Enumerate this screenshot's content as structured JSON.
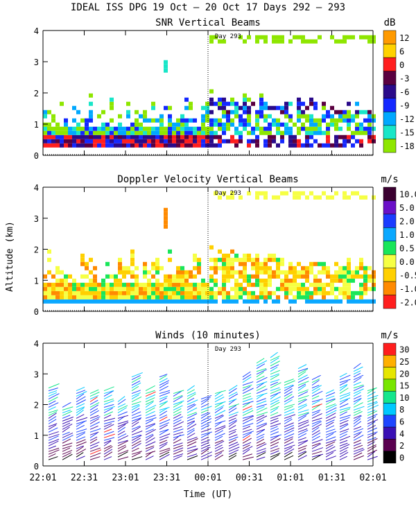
{
  "title": "IDEAL ISS DPG  19 Oct – 20 Oct 17 Days 292 – 293",
  "xlabel": "Time (UT)",
  "ylabel": "Altitude (km)",
  "day_marker": "Day 293",
  "x_ticks": [
    "22:01",
    "22:31",
    "23:01",
    "23:31",
    "00:01",
    "00:31",
    "01:01",
    "01:31",
    "02:01"
  ],
  "chart_data": [
    {
      "type": "heatmap",
      "title": "SNR Vertical Beams",
      "unit": "dB",
      "ylim": [
        0,
        4
      ],
      "y_ticks": [
        "0",
        "1",
        "2",
        "3",
        "4"
      ],
      "scale_labels": [
        "12",
        "6",
        "0",
        "-3",
        "-6",
        "-9",
        "-12",
        "-15",
        "-18"
      ],
      "scale_colors": [
        "#ff9a00",
        "#ffd200",
        "#ff1e1e",
        "#5a0040",
        "#2a0a8a",
        "#1428ff",
        "#00a8ff",
        "#19e6c8",
        "#8ee600"
      ]
    },
    {
      "type": "heatmap",
      "title": "Doppler Velocity Vertical Beams",
      "unit": "m/s",
      "ylim": [
        0,
        4
      ],
      "y_ticks": [
        "0",
        "1",
        "2",
        "3",
        "4"
      ],
      "scale_labels": [
        "10.0",
        "5.0",
        "2.0",
        "1.0",
        "0.5",
        "0.0",
        "-0.5",
        "-1.0",
        "-2.0"
      ],
      "scale_colors": [
        "#3a0030",
        "#6a10c8",
        "#1a3cff",
        "#0aa8ff",
        "#19e65a",
        "#f6ff44",
        "#ffd000",
        "#ff8a00",
        "#ff1e1e"
      ]
    },
    {
      "type": "wind_barbs",
      "title": "Winds (10 minutes)",
      "unit": "m/s",
      "ylim": [
        0,
        4
      ],
      "y_ticks": [
        "0",
        "1",
        "2",
        "3",
        "4"
      ],
      "scale_labels": [
        "30",
        "25",
        "20",
        "15",
        "10",
        "8",
        "6",
        "4",
        "2",
        "0"
      ],
      "scale_colors": [
        "#ff1e1e",
        "#ffb000",
        "#e6e600",
        "#78e600",
        "#14e68c",
        "#00c8ff",
        "#1e46ff",
        "#3a10b4",
        "#5a0050",
        "#000000"
      ]
    }
  ]
}
